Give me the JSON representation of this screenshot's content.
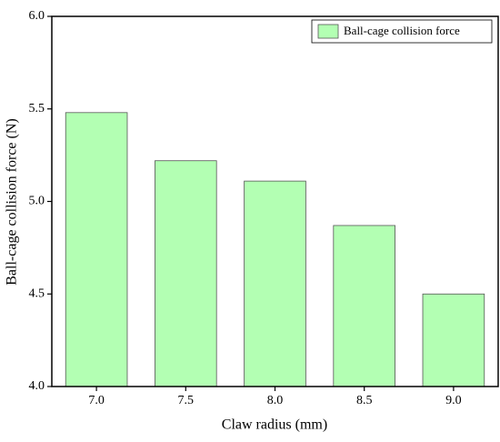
{
  "chart_data": {
    "type": "bar",
    "x_label": "Claw radius (mm)",
    "y_label": "Ball-cage collision force (N)",
    "categories": [
      "7.0",
      "7.5",
      "8.0",
      "8.5",
      "9.0"
    ],
    "series": [
      {
        "name": "Ball-cage collision force",
        "color": "#b3ffb3",
        "values": [
          5.48,
          5.22,
          5.11,
          4.87,
          4.5
        ]
      }
    ],
    "ylim": [
      4.0,
      6.0
    ],
    "yticks": [
      {
        "value": 4.0,
        "label": "4.0"
      },
      4.5,
      {
        "value": 5.0,
        "label": "5.0"
      },
      5.5,
      {
        "value": 6.0,
        "label": "6.0"
      }
    ],
    "legend": "upper right"
  }
}
